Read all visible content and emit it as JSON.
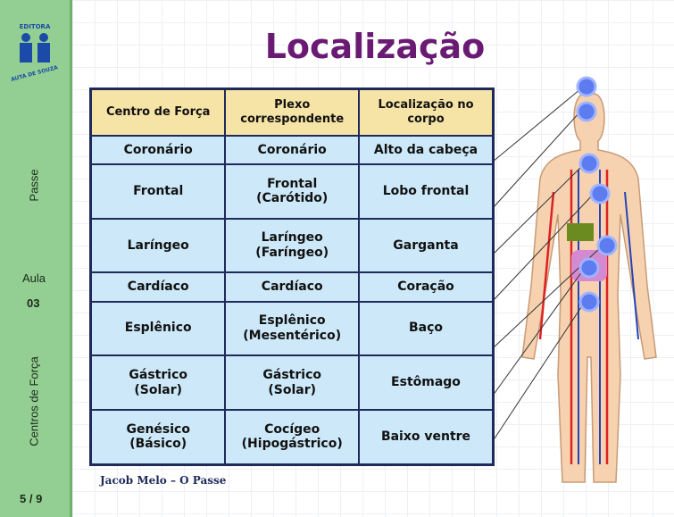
{
  "logo": {
    "top": "EDITORA",
    "bottom": "AUTA DE SOUZA"
  },
  "sidebar": {
    "course": "Passe",
    "lesson_label": "Aula",
    "lesson_number": "03",
    "topic": "Centros de Força",
    "page": "5 / 9"
  },
  "title": "Localização",
  "table": {
    "header": [
      "Centro de Força",
      "Plexo\ncorrespondente",
      "Localização no\ncorpo"
    ],
    "rows": [
      [
        "Coronário",
        "Coronário",
        "Alto da cabeça"
      ],
      [
        "Frontal",
        "Frontal\n(Carótido)",
        "Lobo frontal"
      ],
      [
        "Laríngeo",
        "Laríngeo\n(Faríngeo)",
        "Garganta"
      ],
      [
        "Cardíaco",
        "Cardíaco",
        "Coração"
      ],
      [
        "Esplênico",
        "Esplênico\n(Mesentérico)",
        "Baço"
      ],
      [
        "Gástrico\n(Solar)",
        "Gástrico\n(Solar)",
        "Estômago"
      ],
      [
        "Genésico\n(Básico)",
        "Cocígeo\n(Hipogástrico)",
        "Baixo ventre"
      ]
    ]
  },
  "footer": "Jacob Melo – O Passe"
}
